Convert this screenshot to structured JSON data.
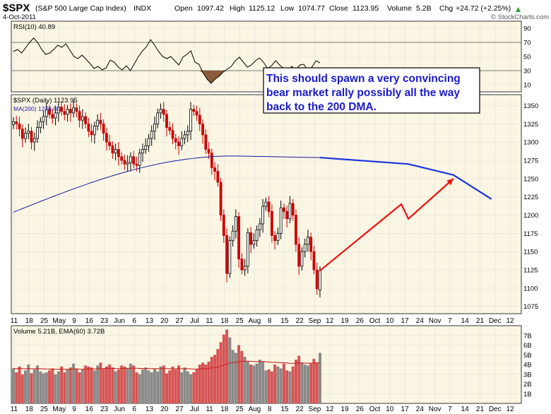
{
  "header": {
    "symbol": "$SPX",
    "name": "(S&P 500 Large Cap Index)",
    "exchange": "INDX",
    "date": "4-Oct-2011",
    "open_label": "Open",
    "open": "1097.42",
    "high_label": "High",
    "high": "1125.12",
    "low_label": "Low",
    "low": "1074.77",
    "close_label": "Close",
    "close": "1123.95",
    "volume_label": "Volume",
    "volume": "5.2B",
    "chg_label": "Chg",
    "chg": "+24.72 (+2.25%)",
    "brand": "© StockCharts.com",
    "chg_arrow_icon": "up-arrow-icon"
  },
  "colors": {
    "panel_bg": "#fbf6e3",
    "up_candle": "#000000",
    "down_candle": "#cc0000",
    "ma_line": "#1a1aa6",
    "projection_red": "#ee1111",
    "projection_blue": "#1a33dd",
    "rsi_fill": "#8c5a3c",
    "grid": "#dddddd",
    "vol_up": "#8a8a8a",
    "vol_down": "#d65555"
  },
  "annotation": {
    "text_line1": "This should spawn a very convincing",
    "text_line2": "bear market rally possibly all the way",
    "text_line3": "back to the 200 DMA."
  },
  "x_axis_labels": [
    "11",
    "18",
    "25",
    "May",
    "9",
    "16",
    "23",
    "Jun",
    "6",
    "13",
    "20",
    "27",
    "Jul",
    "11",
    "18",
    "25",
    "Aug",
    "8",
    "15",
    "22",
    "Sep",
    "12",
    "19",
    "26",
    "Oct",
    "10",
    "17",
    "24",
    "Nov",
    "7",
    "14",
    "21",
    "Dec",
    "12"
  ],
  "chart_data": [
    {
      "type": "line",
      "panel": "rsi",
      "legend": "RSI(10) 40.89",
      "last_value": 40.89,
      "ylim": [
        0,
        100
      ],
      "ticks": [
        10,
        30,
        50,
        70,
        90
      ],
      "reference_lines": [
        30,
        70
      ],
      "values": [
        57,
        60,
        55,
        62,
        70,
        76,
        70,
        60,
        53,
        55,
        60,
        66,
        63,
        68,
        59,
        50,
        47,
        52,
        46,
        40,
        33,
        36,
        31,
        34,
        45,
        42,
        35,
        31,
        37,
        30,
        40,
        50,
        58,
        64,
        74,
        66,
        57,
        50,
        47,
        50,
        44,
        38,
        49,
        53,
        58,
        42,
        39,
        27,
        18,
        12,
        18,
        22,
        28,
        32,
        36,
        44,
        49,
        42,
        35,
        38,
        44,
        48,
        42,
        33,
        37,
        44,
        38,
        33,
        30,
        36,
        31,
        38,
        39,
        30,
        35,
        44,
        41
      ]
    },
    {
      "type": "candlestick",
      "panel": "price",
      "title": "$SPX (Daily) 1123.95",
      "legend": [
        "$SPX (Daily) 1123.95",
        "MA(200) 1278.80"
      ],
      "ylim": [
        1065,
        1365
      ],
      "ticks": [
        1075,
        1100,
        1125,
        1150,
        1175,
        1200,
        1225,
        1250,
        1275,
        1300,
        1325,
        1350
      ],
      "closes": [
        1328,
        1325,
        1318,
        1305,
        1312,
        1315,
        1300,
        1305,
        1320,
        1328,
        1335,
        1345,
        1338,
        1333,
        1340,
        1348,
        1342,
        1338,
        1345,
        1340,
        1347,
        1342,
        1330,
        1335,
        1325,
        1315,
        1310,
        1322,
        1330,
        1325,
        1312,
        1300,
        1295,
        1285,
        1290,
        1280,
        1275,
        1270,
        1272,
        1280,
        1270,
        1268,
        1285,
        1290,
        1295,
        1305,
        1315,
        1325,
        1340,
        1345,
        1338,
        1320,
        1316,
        1305,
        1300,
        1295,
        1305,
        1310,
        1315,
        1345,
        1342,
        1337,
        1325,
        1310,
        1290,
        1285,
        1265,
        1260,
        1245,
        1200,
        1172,
        1120,
        1165,
        1178,
        1198,
        1140,
        1125,
        1130,
        1176,
        1160,
        1165,
        1180,
        1188,
        1212,
        1218,
        1205,
        1172,
        1165,
        1175,
        1210,
        1205,
        1195,
        1216,
        1200,
        1160,
        1130,
        1150,
        1160,
        1170,
        1150,
        1125,
        1099,
        1124
      ],
      "ma200": {
        "label": "MA(200) 1278.80",
        "last_value": 1278.8,
        "start": 1204,
        "peak": 1281,
        "end": 1278.8
      },
      "projection_red": [
        [
          1124,
          "Oct 4"
        ],
        [
          1215,
          "Oct 17"
        ],
        [
          1195,
          "Oct 20"
        ],
        [
          1250,
          "Nov 7"
        ]
      ],
      "projection_ma": [
        [
          1278.8,
          "Oct 4"
        ],
        [
          1270,
          "Oct 20"
        ],
        [
          1255,
          "Nov 7"
        ],
        [
          1222,
          "Dec 1"
        ]
      ]
    },
    {
      "type": "bar",
      "panel": "volume",
      "legend": "Volume 5.21B, EMA(60) 3.72B",
      "last_value_billions": 5.21,
      "ema60_billions": 3.72,
      "ylim": [
        0,
        8
      ],
      "ticks": [
        "1B",
        "2B",
        "3B",
        "4B",
        "5B",
        "6B",
        "7B"
      ],
      "values_billions": [
        3.6,
        3.2,
        3.8,
        3.0,
        3.4,
        4.0,
        3.1,
        3.5,
        3.9,
        3.3,
        3.1,
        3.2,
        3.4,
        3.6,
        3.0,
        3.3,
        3.8,
        3.2,
        3.5,
        3.7,
        4.1,
        3.6,
        3.2,
        3.5,
        3.9,
        3.8,
        3.7,
        3.4,
        3.9,
        4.2,
        3.6,
        3.8,
        4.0,
        3.7,
        3.3,
        3.5,
        3.9,
        3.8,
        3.6,
        4.1,
        3.9,
        3.2,
        3.0,
        3.5,
        3.7,
        3.4,
        3.2,
        3.6,
        3.3,
        3.8,
        3.9,
        3.1,
        3.4,
        3.8,
        3.5,
        3.9,
        3.2,
        3.7,
        3.3,
        3.0,
        3.2,
        3.5,
        4.0,
        4.2,
        4.0,
        4.3,
        4.8,
        5.0,
        5.6,
        6.3,
        7.1,
        7.6,
        6.8,
        5.5,
        5.2,
        6.0,
        5.4,
        4.8,
        4.3,
        4.0,
        3.9,
        4.1,
        4.5,
        4.3,
        3.4,
        3.5,
        3.3,
        4.0,
        3.8,
        3.6,
        4.1,
        3.4,
        3.3,
        3.8,
        4.5,
        4.9,
        4.2,
        4.0,
        3.9,
        4.1,
        4.6,
        4.2,
        5.2
      ]
    }
  ]
}
